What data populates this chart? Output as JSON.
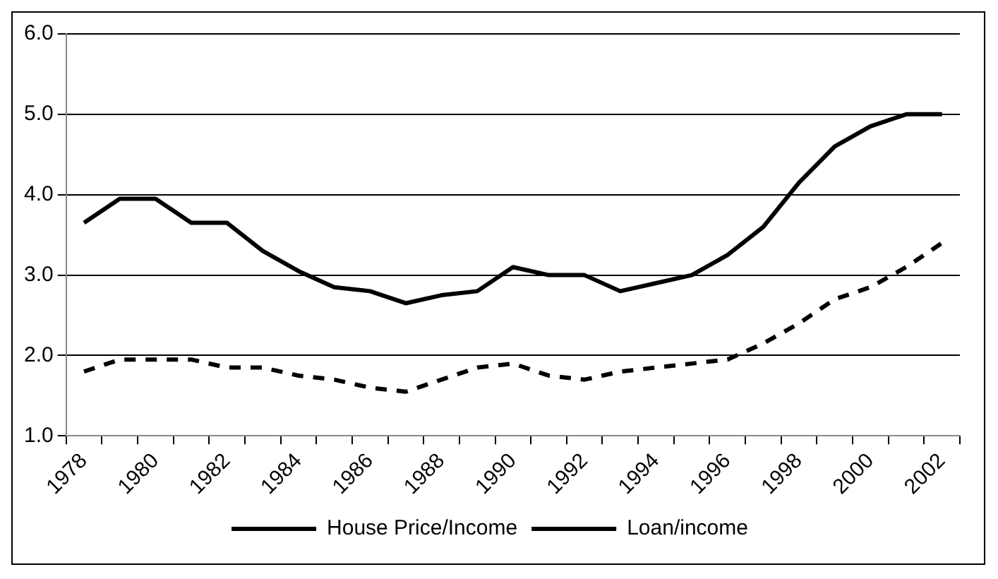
{
  "chart_data": {
    "type": "line",
    "categories": [
      "1978",
      null,
      "1980",
      null,
      "1982",
      null,
      "1984",
      null,
      "1986",
      null,
      "1988",
      null,
      "1990",
      null,
      "1992",
      null,
      "1994",
      null,
      "1996",
      null,
      "1998",
      null,
      "2000",
      null,
      "2002"
    ],
    "series": [
      {
        "name": "House Price/Income",
        "color": "#000000",
        "line_style": "solid",
        "values": [
          3.65,
          3.95,
          3.95,
          3.65,
          3.65,
          3.3,
          3.05,
          2.85,
          2.8,
          2.65,
          2.75,
          2.8,
          3.1,
          3.0,
          3.0,
          2.8,
          2.9,
          3.0,
          3.25,
          3.6,
          4.15,
          4.6,
          4.85,
          5.0,
          5.0
        ]
      },
      {
        "name": "Loan/income",
        "color": "#000000",
        "line_style": "dashed",
        "values": [
          1.8,
          1.95,
          1.95,
          1.95,
          1.85,
          1.85,
          1.75,
          1.7,
          1.6,
          1.55,
          1.7,
          1.85,
          1.9,
          1.75,
          1.7,
          1.8,
          1.85,
          1.9,
          1.95,
          2.15,
          2.4,
          2.7,
          2.85,
          3.1,
          3.4
        ]
      }
    ],
    "ylim": [
      1,
      6
    ],
    "yticks": [
      {
        "value": 1,
        "label": "1.0"
      },
      {
        "value": 2,
        "label": "2.0"
      },
      {
        "value": 3,
        "label": "3.0"
      },
      {
        "value": 4,
        "label": "4.0"
      },
      {
        "value": 5,
        "label": "5.0"
      },
      {
        "value": 6,
        "label": "6.0"
      }
    ],
    "grid": "y",
    "legend": "bottom",
    "marker": "none"
  }
}
